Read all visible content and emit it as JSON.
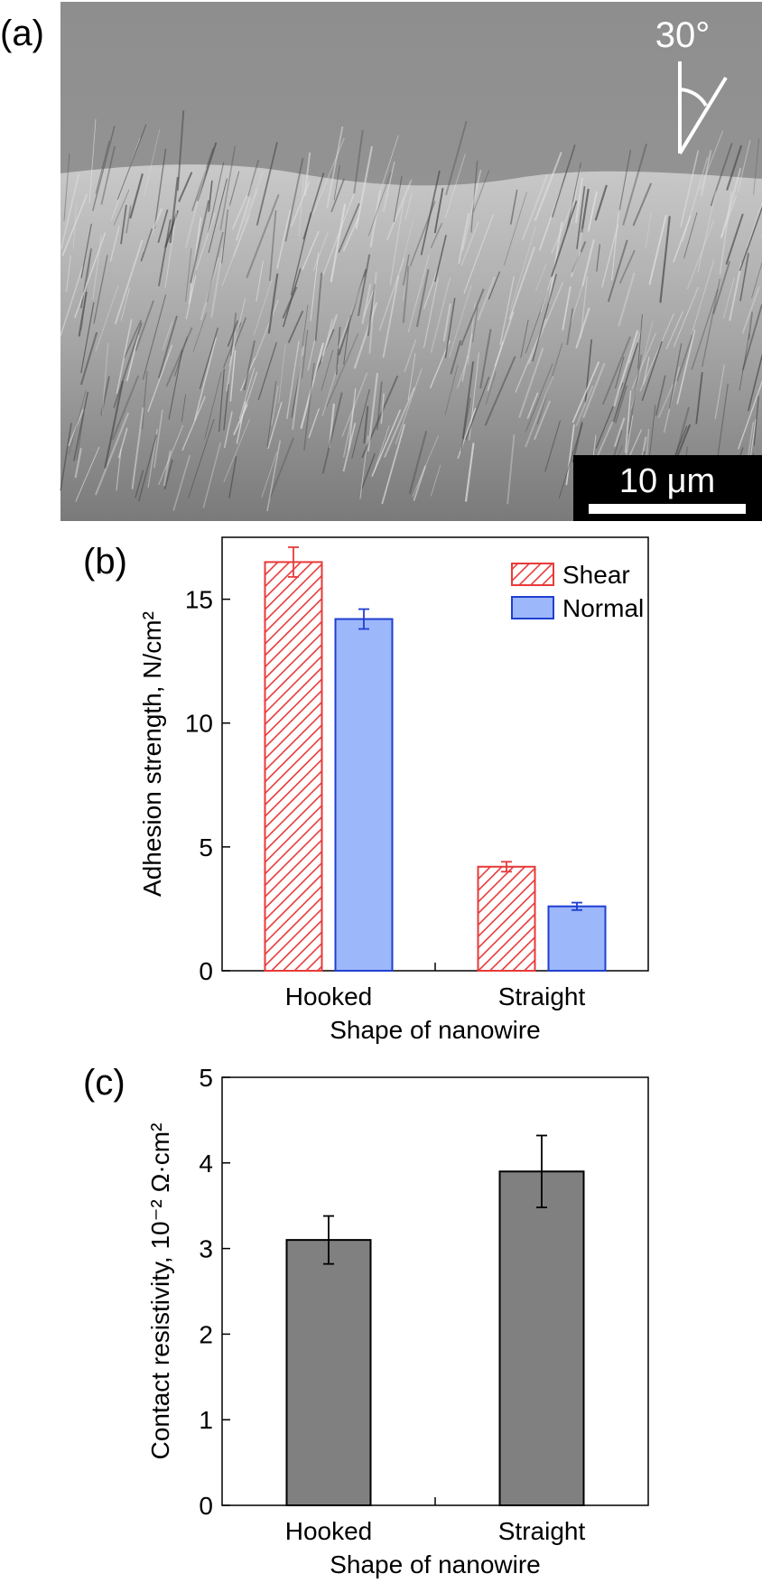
{
  "panels": {
    "a": {
      "label": "(a)",
      "tilt_label": "30°",
      "scale_bar_label": "10 μm"
    }
  },
  "colors": {
    "shear": "#e83a3a",
    "shear_fill": "#ffffff",
    "normal_fill": "#9db7fb",
    "normal_edge": "#1f3fd0",
    "gray_fill": "#808080",
    "sem_bg": "#8c8c8c"
  },
  "chart_data": [
    {
      "panel": "(b)",
      "type": "bar",
      "title": "",
      "categories": [
        "Hooked",
        "Straight"
      ],
      "series": [
        {
          "name": "Shear",
          "values": [
            16.5,
            4.2
          ],
          "errors": [
            0.6,
            0.2
          ]
        },
        {
          "name": "Normal",
          "values": [
            14.2,
            2.6
          ],
          "errors": [
            0.4,
            0.15
          ]
        }
      ],
      "xlabel": "Shape of nanowire",
      "ylabel": "Adhesion strength, N/cm²",
      "ylim": [
        0,
        17.5
      ],
      "yticks": [
        0,
        5,
        10,
        15
      ],
      "legend": "top-right",
      "grid": false
    },
    {
      "panel": "(c)",
      "type": "bar",
      "title": "",
      "categories": [
        "Hooked",
        "Straight"
      ],
      "series": [
        {
          "name": "Contact resistivity",
          "values": [
            3.1,
            3.9
          ],
          "errors": [
            0.28,
            0.42
          ]
        }
      ],
      "xlabel": "Shape of nanowire",
      "ylabel": "Contact resistivity, 10⁻² Ω·cm²",
      "ylim": [
        0,
        5
      ],
      "yticks": [
        0,
        1,
        2,
        3,
        4,
        5
      ],
      "legend": "none",
      "grid": false
    }
  ]
}
